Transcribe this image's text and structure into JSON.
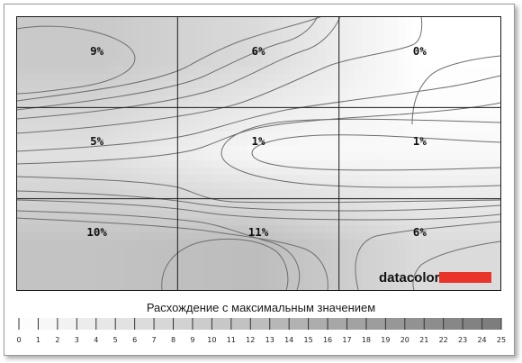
{
  "chart_data": {
    "type": "heatmap",
    "rows": 3,
    "cols": 3,
    "cells": [
      [
        "9%",
        "6%",
        "0%"
      ],
      [
        "5%",
        "1%",
        "1%"
      ],
      [
        "10%",
        "11%",
        "6%"
      ]
    ],
    "values": [
      [
        9,
        6,
        0
      ],
      [
        5,
        1,
        1
      ],
      [
        10,
        11,
        6
      ]
    ],
    "title": "Расхождение с максимальным значением",
    "scale": {
      "min": 0,
      "max": 25,
      "ticks": [
        "0",
        "1",
        "2",
        "3",
        "4",
        "5",
        "6",
        "7",
        "8",
        "9",
        "10",
        "11",
        "12",
        "13",
        "14",
        "15",
        "16",
        "17",
        "18",
        "19",
        "20",
        "21",
        "22",
        "23",
        "24",
        "25"
      ]
    },
    "colors": {
      "low": "#ffffff",
      "high": "#7a7a7a",
      "contour": "#6e6e6e",
      "grid": "#1a1a1a"
    }
  },
  "logo": {
    "text": "datacolor",
    "bar_color": "#e8342a"
  }
}
